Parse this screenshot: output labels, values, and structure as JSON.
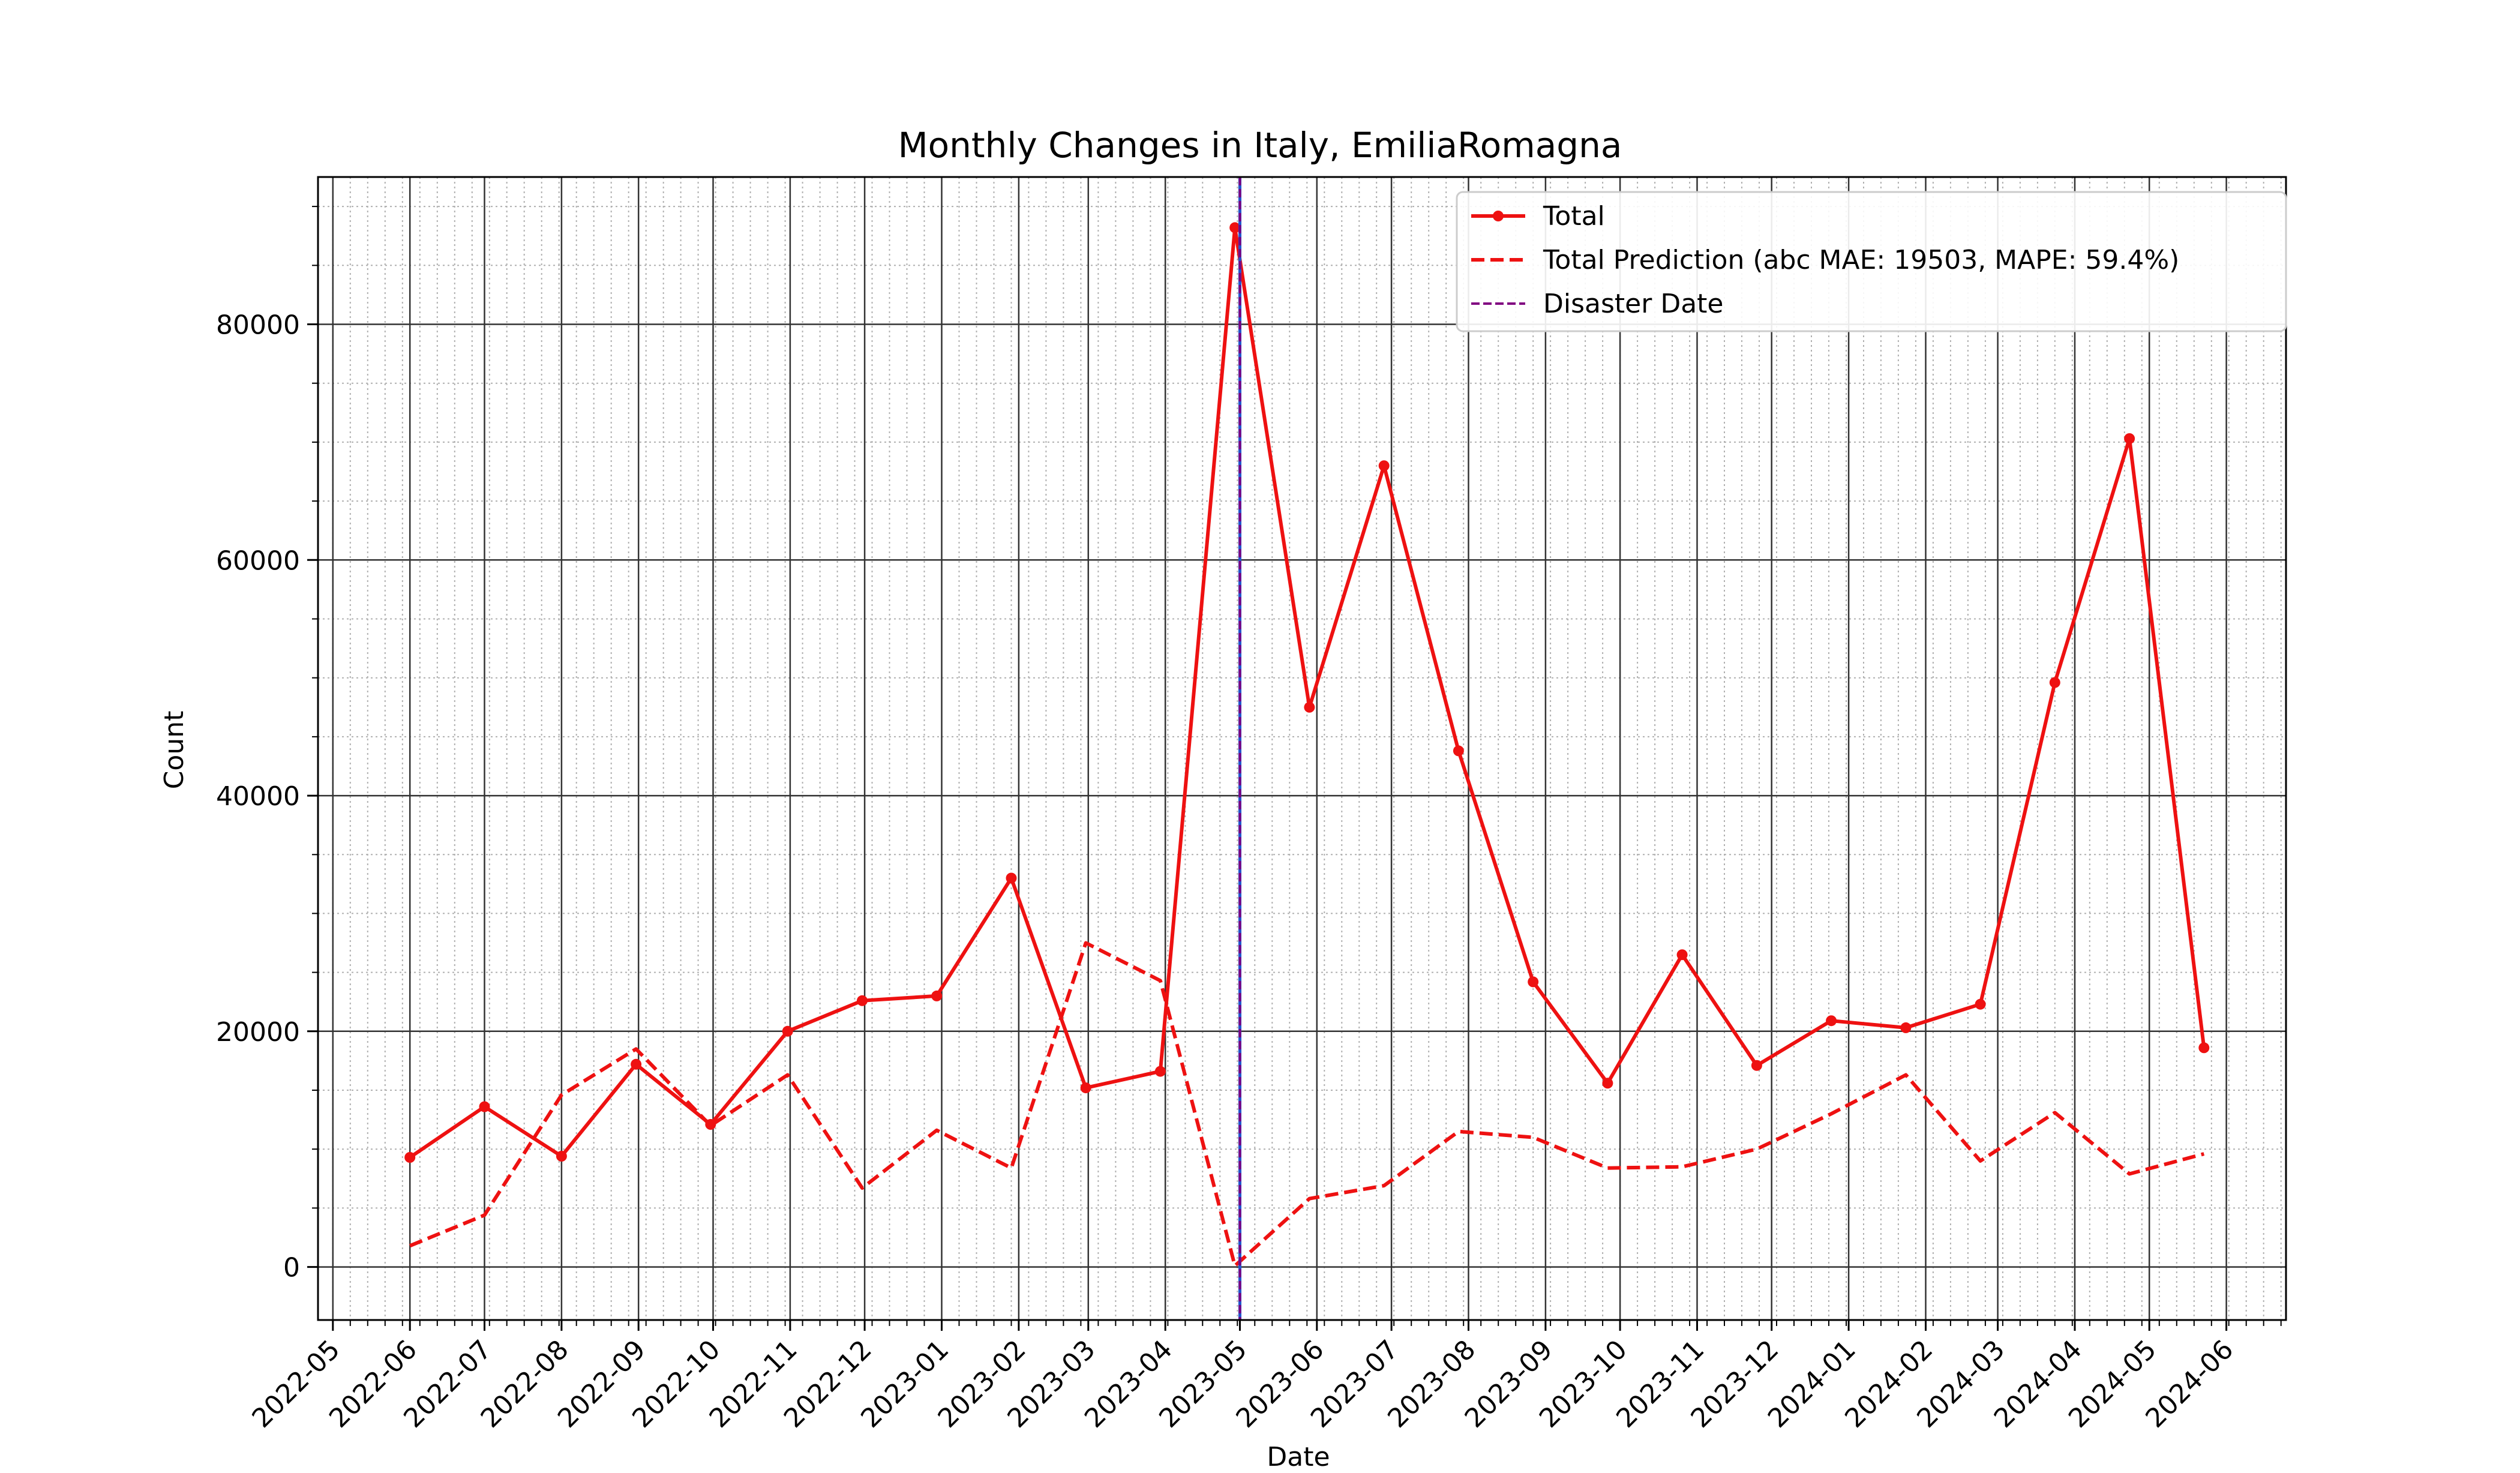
{
  "chart_data": {
    "type": "line",
    "title": "Monthly Changes in Italy, EmiliaRomagna",
    "xlabel": "Date",
    "ylabel": "Count",
    "xlim": [
      "2022-04-25",
      "2024-06-25"
    ],
    "ylim": [
      -4500,
      92500
    ],
    "x_ticks": [
      "2022-05",
      "2022-06",
      "2022-07",
      "2022-08",
      "2022-09",
      "2022-10",
      "2022-11",
      "2022-12",
      "2023-01",
      "2023-02",
      "2023-03",
      "2023-04",
      "2023-05",
      "2023-06",
      "2023-07",
      "2023-08",
      "2023-09",
      "2023-10",
      "2023-11",
      "2023-12",
      "2024-01",
      "2024-02",
      "2024-03",
      "2024-04",
      "2024-05",
      "2024-06"
    ],
    "y_ticks": [
      "0",
      "20000",
      "40000",
      "60000",
      "80000"
    ],
    "grid": true,
    "legend_position": "top-right",
    "disaster_date": "2023-05-01",
    "series": [
      {
        "name": "Total",
        "style": "solid-marker",
        "color": "#ee1111",
        "x": [
          "2022-06-01",
          "2022-07-01",
          "2022-08-01",
          "2022-08-31",
          "2022-09-30",
          "2022-10-31",
          "2022-11-30",
          "2022-12-30",
          "2023-01-29",
          "2023-02-28",
          "2023-03-30",
          "2023-04-29",
          "2023-05-29",
          "2023-06-28",
          "2023-07-28",
          "2023-08-27",
          "2023-09-26",
          "2023-10-26",
          "2023-11-25",
          "2023-12-25",
          "2024-01-24",
          "2024-02-23",
          "2024-03-24",
          "2024-04-23",
          "2024-05-23"
        ],
        "y": [
          9300,
          13600,
          9400,
          17200,
          12100,
          20000,
          22600,
          23000,
          33000,
          15200,
          16600,
          88200,
          47500,
          68000,
          43800,
          24200,
          15600,
          26500,
          17100,
          20900,
          20300,
          22300,
          49600,
          70300,
          18600
        ]
      },
      {
        "name": "Total Prediction (abc MAE: 19503, MAPE: 59.4%)",
        "style": "dashed",
        "color": "#ee1111",
        "x": [
          "2022-06-01",
          "2022-07-01",
          "2022-08-01",
          "2022-08-31",
          "2022-09-30",
          "2022-10-31",
          "2022-11-30",
          "2022-12-30",
          "2023-01-29",
          "2023-02-28",
          "2023-03-30",
          "2023-04-29",
          "2023-05-29",
          "2023-06-28",
          "2023-07-28",
          "2023-08-27",
          "2023-09-26",
          "2023-10-26",
          "2023-11-25",
          "2023-12-25",
          "2024-01-24",
          "2024-02-23",
          "2024-03-24",
          "2024-04-23",
          "2024-05-23"
        ],
        "y": [
          1800,
          4400,
          14600,
          18500,
          12000,
          16300,
          6700,
          11600,
          8400,
          27500,
          24300,
          100,
          5800,
          6900,
          11500,
          11000,
          8400,
          8500,
          10000,
          13000,
          16300,
          9000,
          13100,
          7900,
          9600
        ]
      },
      {
        "name": "Disaster Date",
        "style": "dashed-vertical",
        "color": "#800080"
      }
    ]
  }
}
